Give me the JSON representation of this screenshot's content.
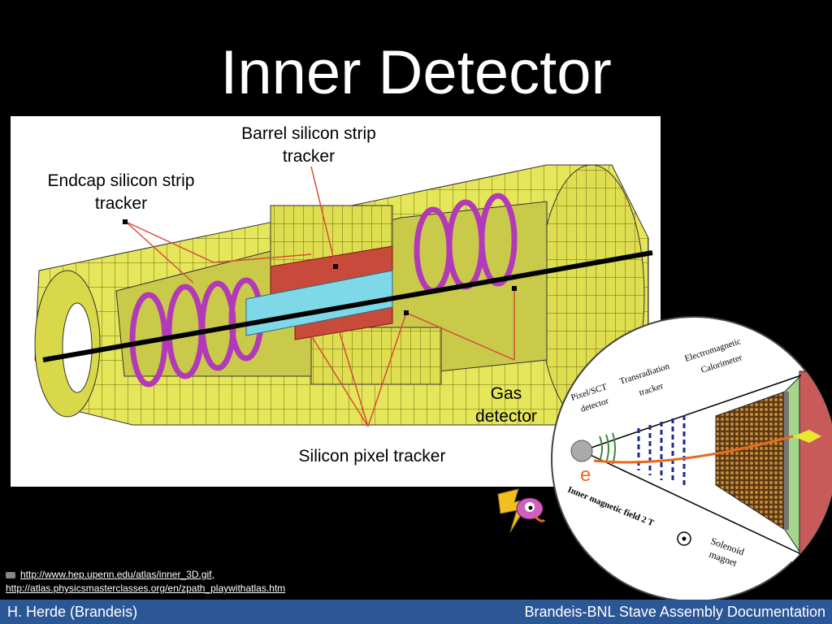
{
  "slide": {
    "title": "Inner Detector"
  },
  "labels": {
    "barrel_sct_line1": "Barrel silicon strip",
    "barrel_sct_line2": "tracker",
    "endcap_sct_line1": "Endcap silicon strip",
    "endcap_sct_line2": "tracker",
    "gas_line1": "Gas",
    "gas_line2": "detector",
    "pixel": "Silicon pixel tracker"
  },
  "inset": {
    "pixel_sct_line1": "Pixel/SCT",
    "pixel_sct_line2": "detector",
    "trt_line1": "Transradiation",
    "trt_line2": "tracker",
    "ecal_line1": "Electromagnetic",
    "ecal_line2": "Calorimeter",
    "particle": "e",
    "field": "Inner magnetic field 2 T",
    "solenoid_line1": "Solenoid",
    "solenoid_line2": "magnet"
  },
  "credits": {
    "link1": "http://www.hep.upenn.edu/atlas/inner_3D.gif,",
    "link2": "http://atlas.physicsmasterclasses.org/en/zpath_playwithatlas.htm"
  },
  "footer": {
    "author": "H. Herde (Brandeis)",
    "deck_title": "Brandeis-BNL Stave Assembly Documentation"
  },
  "colors": {
    "background": "#000000",
    "footer_bar": "#2b5797",
    "detector_yellow": "#e6e65a",
    "sct_magenta": "#b23ab8",
    "pixel_cyan": "#7fd8e8",
    "leader_red": "#d94a3a"
  }
}
